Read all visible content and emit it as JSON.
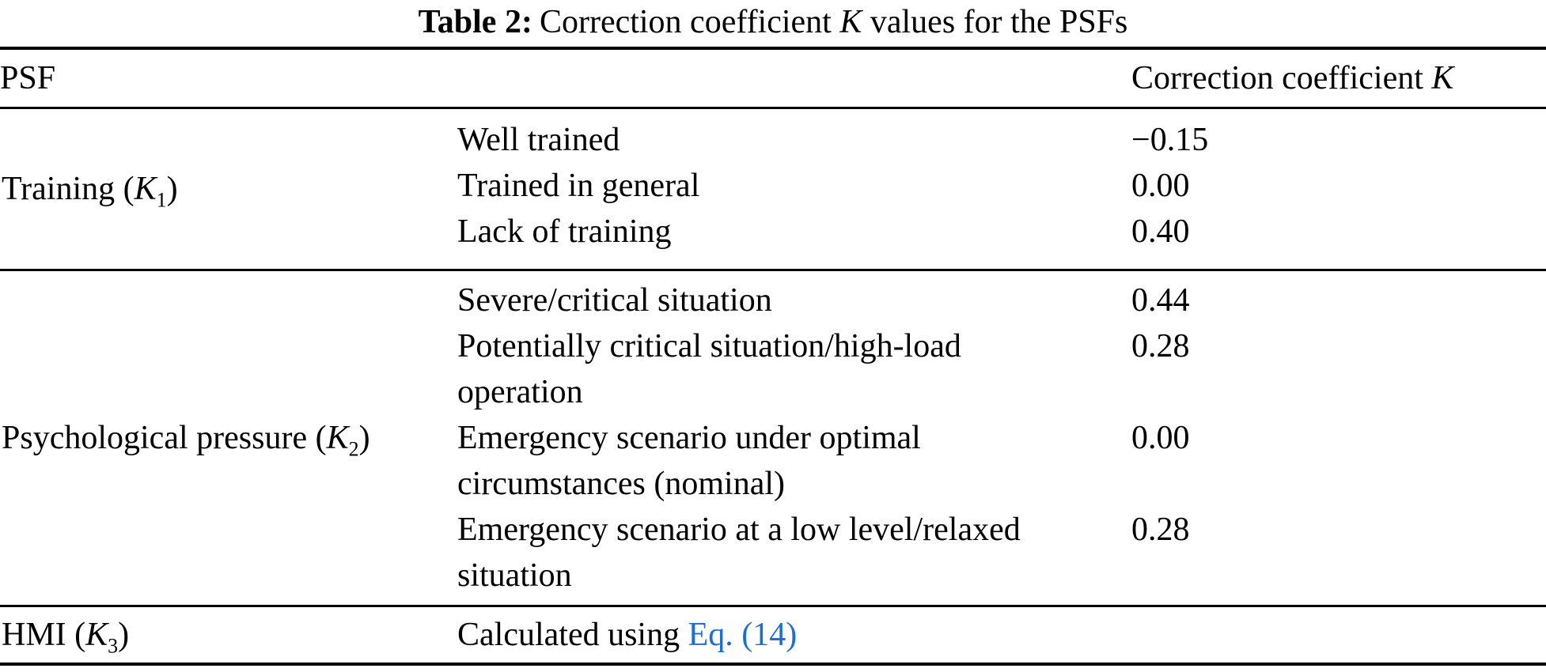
{
  "title": {
    "prefix": "Table 2:",
    "main": "Correction coefficient ",
    "k": "K",
    "suffix": " values for the PSFs"
  },
  "header": {
    "psf": "PSF",
    "coeff_prefix": "Correction coefficient ",
    "k": "K"
  },
  "groups": [
    {
      "psf": {
        "prefix": "Training (",
        "k": "K",
        "sub": "1",
        "suffix": ")"
      },
      "rows": [
        {
          "line1": "Well trained",
          "value": "−0.15"
        },
        {
          "line1": "Trained in general",
          "value": "0.00"
        },
        {
          "line1": "Lack of training",
          "value": "0.40"
        }
      ]
    },
    {
      "psf": {
        "prefix": "Psychological pressure (",
        "k": "K",
        "sub": "2",
        "suffix": ")"
      },
      "rows": [
        {
          "line1": "Severe/critical situation",
          "value": "0.44"
        },
        {
          "line1": "Potentially critical situation/high-load",
          "line2": "operation",
          "value": "0.28"
        },
        {
          "line1": "Emergency scenario under optimal",
          "line2": "circumstances (nominal)",
          "value": "0.00"
        },
        {
          "line1": "Emergency scenario at a low level/relaxed",
          "line2": "situation",
          "value": "0.28"
        }
      ]
    },
    {
      "psf": {
        "prefix": "HMI (",
        "k": "K",
        "sub": "3",
        "suffix": ")"
      },
      "rows": [
        {
          "text_before_link": "Calculated using ",
          "link": "Eq. (14)",
          "value": ""
        }
      ]
    }
  ],
  "colors": {
    "link_blue": "#1c6fd2",
    "text": "#000000",
    "background": "#ffffff"
  }
}
